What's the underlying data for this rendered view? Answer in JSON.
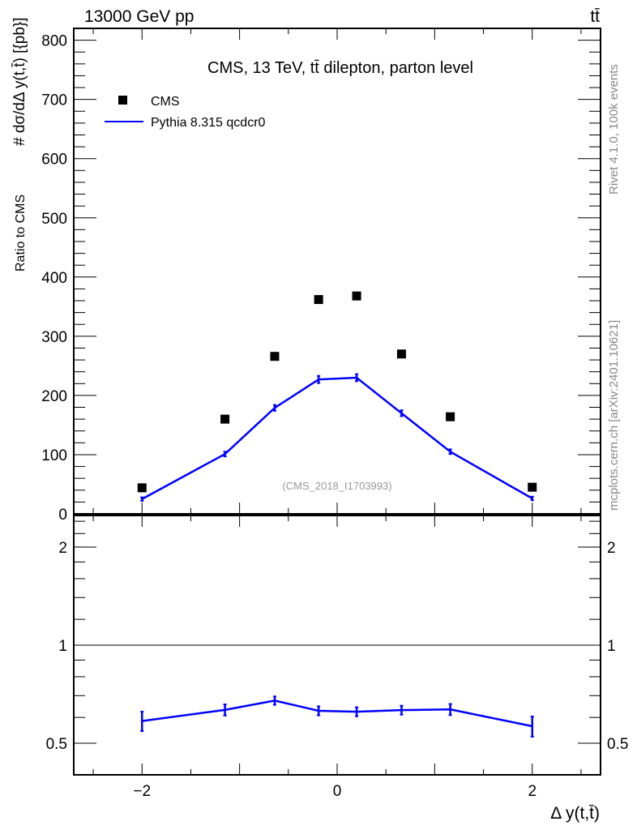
{
  "header": {
    "left": "13000 GeV pp",
    "right": "tt̄"
  },
  "side_labels": {
    "rivet": "Rivet 4.1.0,  100k events",
    "mcplots": "mcplots.cern.ch [arXiv:2401.10621]"
  },
  "colors": {
    "data": "#000000",
    "mc": "#0000ff"
  },
  "chart_data": [
    {
      "type": "scatter",
      "title": "CMS, 13 TeV, tt̄ dilepton, parton level",
      "annotation": "(CMS_2018_I1703993)",
      "ylabel": "# dσ/dΔ y(t,t̄) [{pb}]",
      "xlabel": "",
      "xlim": [
        -2.7,
        2.7
      ],
      "ylim": [
        0,
        820
      ],
      "yticks": [
        0,
        100,
        200,
        300,
        400,
        500,
        600,
        700,
        800
      ],
      "legend": {
        "placement": "top-left",
        "entries": [
          "CMS",
          "Pythia 8.315 qcdcr0"
        ]
      },
      "x": [
        -2.0,
        -1.15,
        -0.64,
        -0.19,
        0.2,
        0.66,
        1.16,
        2.0
      ],
      "series": [
        {
          "name": "CMS",
          "style": "markers",
          "values": [
            44,
            160,
            266,
            362,
            368,
            270,
            164,
            45
          ]
        },
        {
          "name": "Pythia 8.315 qcdcr0",
          "style": "line",
          "values": [
            25,
            101,
            179,
            227,
            230,
            170,
            105,
            26
          ],
          "errors": [
            3,
            4,
            5,
            6,
            6,
            5,
            4,
            3
          ]
        }
      ]
    },
    {
      "type": "line",
      "ylabel": "Ratio to CMS",
      "xlabel": "Δ y(t,t̄)",
      "xlim": [
        -2.7,
        2.7
      ],
      "ylim": [
        0.4,
        2.5
      ],
      "yscale": "log",
      "yticks": [
        0.5,
        1,
        2
      ],
      "xticks": [
        -2,
        0,
        2
      ],
      "x": [
        -2.0,
        -1.15,
        -0.64,
        -0.19,
        0.2,
        0.66,
        1.16,
        2.0
      ],
      "series": [
        {
          "name": "Pythia 8.315 qcdcr0",
          "values": [
            0.585,
            0.633,
            0.676,
            0.629,
            0.625,
            0.632,
            0.635,
            0.564
          ],
          "errors": [
            0.04,
            0.025,
            0.02,
            0.02,
            0.02,
            0.02,
            0.025,
            0.04
          ]
        }
      ]
    }
  ]
}
